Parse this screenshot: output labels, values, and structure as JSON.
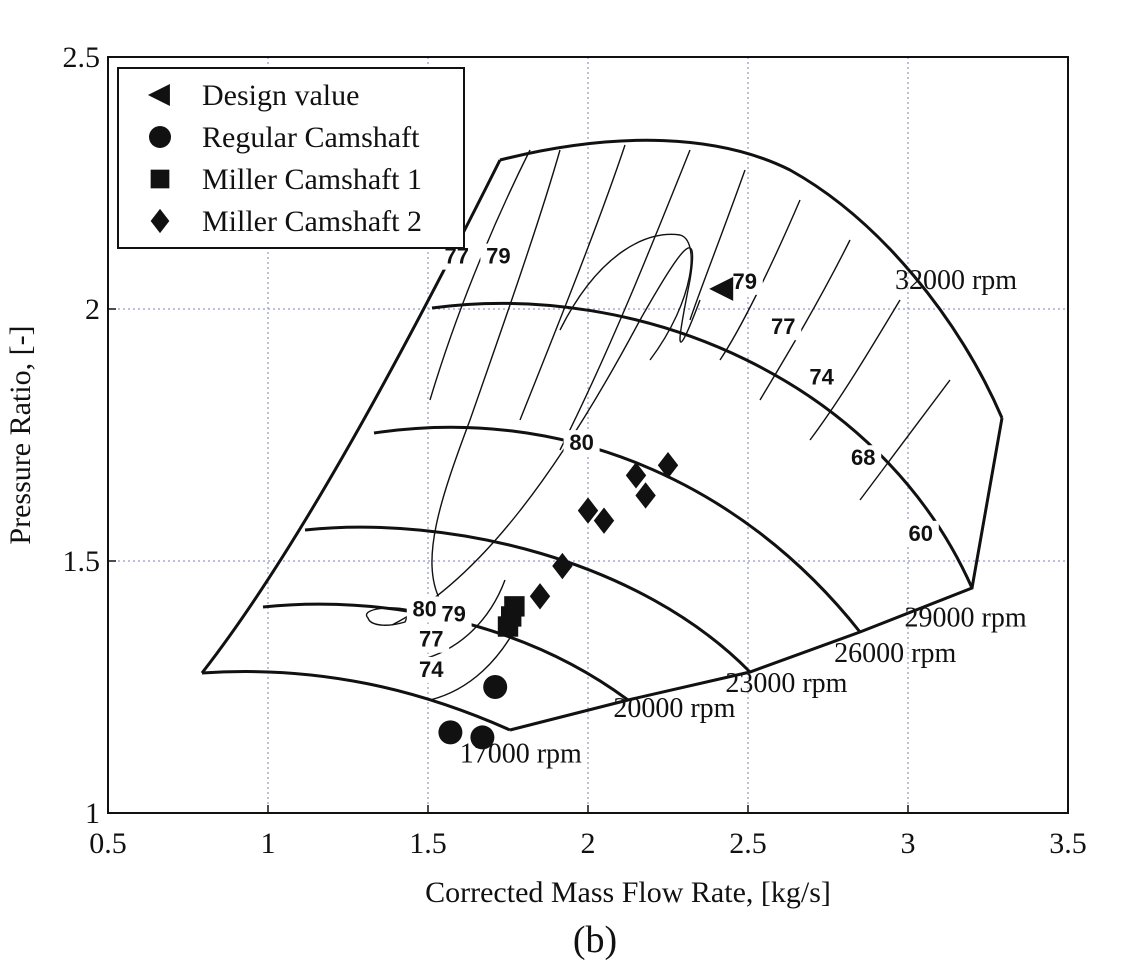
{
  "chart_data": {
    "type": "scatter",
    "title": "",
    "caption": "(b)",
    "xlabel": "Corrected Mass Flow Rate, [kg/s]",
    "ylabel": "Pressure Ratio, [-]",
    "xlim": [
      0.5,
      3.5
    ],
    "ylim": [
      1,
      2.5
    ],
    "xticks": [
      "0.5",
      "1",
      "1.5",
      "2",
      "2.5",
      "3",
      "3.5"
    ],
    "yticks": [
      "1",
      "1.5",
      "2",
      "2.5"
    ],
    "grid": true,
    "legend_position": "top-left",
    "series": [
      {
        "name": "Design value",
        "marker": "triangle-left",
        "points": [
          [
            2.42,
            2.04
          ]
        ]
      },
      {
        "name": "Regular Camshaft",
        "marker": "circle",
        "points": [
          [
            1.57,
            1.16
          ],
          [
            1.67,
            1.15
          ],
          [
            1.71,
            1.25
          ]
        ]
      },
      {
        "name": "Miller Camshaft 1",
        "marker": "square",
        "points": [
          [
            1.75,
            1.37
          ],
          [
            1.76,
            1.39
          ],
          [
            1.77,
            1.41
          ]
        ]
      },
      {
        "name": "Miller Camshaft 2",
        "marker": "diamond",
        "points": [
          [
            1.85,
            1.43
          ],
          [
            1.92,
            1.49
          ],
          [
            2.0,
            1.6
          ],
          [
            2.05,
            1.58
          ],
          [
            2.15,
            1.67
          ],
          [
            2.18,
            1.63
          ],
          [
            2.25,
            1.69
          ]
        ]
      }
    ],
    "speed_line_labels": [
      {
        "label": "17000 rpm",
        "x": 1.79,
        "y": 1.1
      },
      {
        "label": "20000 rpm",
        "x": 2.27,
        "y": 1.19
      },
      {
        "label": "23000 rpm",
        "x": 2.62,
        "y": 1.24
      },
      {
        "label": "26000 rpm",
        "x": 2.96,
        "y": 1.3
      },
      {
        "label": "29000 rpm",
        "x": 3.18,
        "y": 1.37
      },
      {
        "label": "32000 rpm",
        "x": 3.15,
        "y": 2.04
      }
    ],
    "efficiency_labels": [
      {
        "label": "80",
        "x": 1.98,
        "y": 1.72
      },
      {
        "label": "80",
        "x": 1.49,
        "y": 1.39
      },
      {
        "label": "79",
        "x": 1.58,
        "y": 1.38
      },
      {
        "label": "77",
        "x": 1.51,
        "y": 1.33
      },
      {
        "label": "74",
        "x": 1.51,
        "y": 1.27
      },
      {
        "label": "77",
        "x": 1.59,
        "y": 2.09
      },
      {
        "label": "79",
        "x": 1.72,
        "y": 2.09
      },
      {
        "label": "79",
        "x": 2.49,
        "y": 2.04
      },
      {
        "label": "77",
        "x": 2.61,
        "y": 1.95
      },
      {
        "label": "74",
        "x": 2.73,
        "y": 1.85
      },
      {
        "label": "68",
        "x": 2.86,
        "y": 1.69
      },
      {
        "label": "60",
        "x": 3.04,
        "y": 1.54
      }
    ]
  }
}
